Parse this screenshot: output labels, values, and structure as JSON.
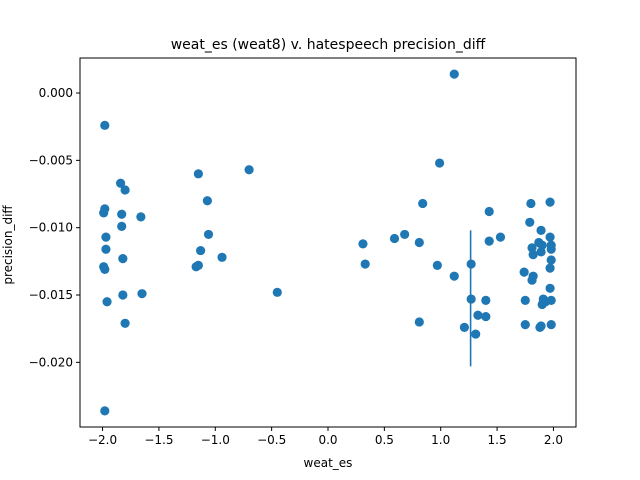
{
  "chart_data": {
    "type": "scatter",
    "title": "weat_es (weat8) v. hatespeech precision_diff",
    "xlabel": "weat_es",
    "ylabel": "precision_diff",
    "xlim": [
      -2.2,
      2.2
    ],
    "ylim": [
      -0.0248,
      0.0026
    ],
    "x_ticks": [
      -2.0,
      -1.5,
      -1.0,
      -0.5,
      0.0,
      0.5,
      1.0,
      1.5,
      2.0
    ],
    "x_tick_labels": [
      "−2.0",
      "−1.5",
      "−1.0",
      "−0.5",
      "0.0",
      "0.5",
      "1.0",
      "1.5",
      "2.0"
    ],
    "y_ticks": [
      0.0,
      -0.005,
      -0.01,
      -0.015,
      -0.02
    ],
    "y_tick_labels": [
      "0.000",
      "−0.005",
      "−0.010",
      "−0.015",
      "−0.020"
    ],
    "grid": false,
    "marker_color": "#1f77b4",
    "points": [
      {
        "x": -1.98,
        "y": -0.0024
      },
      {
        "x": -1.98,
        "y": -0.0086
      },
      {
        "x": -1.99,
        "y": -0.0089
      },
      {
        "x": -1.97,
        "y": -0.0107
      },
      {
        "x": -1.97,
        "y": -0.0116
      },
      {
        "x": -1.99,
        "y": -0.0129
      },
      {
        "x": -1.98,
        "y": -0.0131
      },
      {
        "x": -1.96,
        "y": -0.0155
      },
      {
        "x": -1.98,
        "y": -0.0236
      },
      {
        "x": -1.84,
        "y": -0.0067
      },
      {
        "x": -1.8,
        "y": -0.0072
      },
      {
        "x": -1.83,
        "y": -0.009
      },
      {
        "x": -1.83,
        "y": -0.0099
      },
      {
        "x": -1.82,
        "y": -0.0123
      },
      {
        "x": -1.82,
        "y": -0.015
      },
      {
        "x": -1.8,
        "y": -0.0171
      },
      {
        "x": -1.66,
        "y": -0.0092
      },
      {
        "x": -1.65,
        "y": -0.0149
      },
      {
        "x": -1.15,
        "y": -0.006
      },
      {
        "x": -1.07,
        "y": -0.008
      },
      {
        "x": -1.06,
        "y": -0.0105
      },
      {
        "x": -1.13,
        "y": -0.0117
      },
      {
        "x": -1.17,
        "y": -0.0129
      },
      {
        "x": -1.15,
        "y": -0.0128
      },
      {
        "x": -0.94,
        "y": -0.0122
      },
      {
        "x": -0.7,
        "y": -0.0057
      },
      {
        "x": -0.45,
        "y": -0.0148
      },
      {
        "x": 0.31,
        "y": -0.0112
      },
      {
        "x": 0.33,
        "y": -0.0127
      },
      {
        "x": 0.59,
        "y": -0.0108
      },
      {
        "x": 0.68,
        "y": -0.0105
      },
      {
        "x": 0.81,
        "y": -0.0111
      },
      {
        "x": 0.84,
        "y": -0.0082
      },
      {
        "x": 0.81,
        "y": -0.017
      },
      {
        "x": 0.97,
        "y": -0.0128
      },
      {
        "x": 0.99,
        "y": -0.0052
      },
      {
        "x": 1.12,
        "y": 0.0014
      },
      {
        "x": 1.12,
        "y": -0.0136
      },
      {
        "x": 1.21,
        "y": -0.0174
      },
      {
        "x": 1.27,
        "y": -0.0127
      },
      {
        "x": 1.27,
        "y": -0.0153
      },
      {
        "x": 1.31,
        "y": -0.0179
      },
      {
        "x": 1.33,
        "y": -0.0165
      },
      {
        "x": 1.4,
        "y": -0.0154
      },
      {
        "x": 1.4,
        "y": -0.0166
      },
      {
        "x": 1.43,
        "y": -0.0088
      },
      {
        "x": 1.43,
        "y": -0.011
      },
      {
        "x": 1.53,
        "y": -0.0107
      },
      {
        "x": 1.74,
        "y": -0.0133
      },
      {
        "x": 1.75,
        "y": -0.0154
      },
      {
        "x": 1.75,
        "y": -0.0172
      },
      {
        "x": 1.79,
        "y": -0.0096
      },
      {
        "x": 1.8,
        "y": -0.0082
      },
      {
        "x": 1.81,
        "y": -0.0115
      },
      {
        "x": 1.82,
        "y": -0.012
      },
      {
        "x": 1.82,
        "y": -0.0136
      },
      {
        "x": 1.81,
        "y": -0.0139
      },
      {
        "x": 1.87,
        "y": -0.0111
      },
      {
        "x": 1.89,
        "y": -0.0102
      },
      {
        "x": 1.9,
        "y": -0.0113
      },
      {
        "x": 1.89,
        "y": -0.0118
      },
      {
        "x": 1.91,
        "y": -0.0153
      },
      {
        "x": 1.9,
        "y": -0.0157
      },
      {
        "x": 1.89,
        "y": -0.0173
      },
      {
        "x": 1.88,
        "y": -0.0174
      },
      {
        "x": 1.93,
        "y": -0.0155
      },
      {
        "x": 1.97,
        "y": -0.0081
      },
      {
        "x": 1.97,
        "y": -0.0107
      },
      {
        "x": 1.98,
        "y": -0.0113
      },
      {
        "x": 1.98,
        "y": -0.0116
      },
      {
        "x": 1.98,
        "y": -0.0124
      },
      {
        "x": 1.97,
        "y": -0.013
      },
      {
        "x": 1.97,
        "y": -0.0145
      },
      {
        "x": 1.98,
        "y": -0.0154
      },
      {
        "x": 1.98,
        "y": -0.0172
      }
    ],
    "vertical_line": {
      "x": 1.265,
      "y_from": -0.0203,
      "y_to": -0.0102
    }
  }
}
